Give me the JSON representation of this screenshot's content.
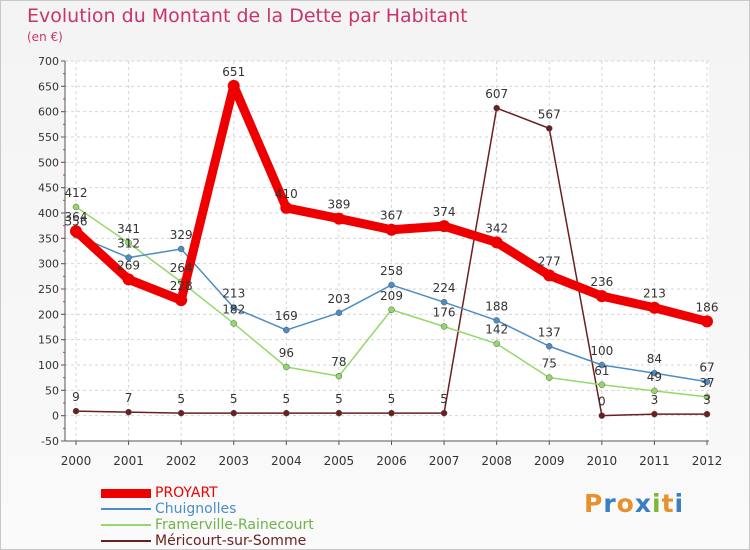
{
  "title": "Evolution du Montant de la Dette par Habitant",
  "unit": "(en €)",
  "brand": {
    "text": "Proxiti",
    "colors": [
      "#e8912c",
      "#3a7fc1",
      "#e8912c",
      "#3a7fc1",
      "#7bb83a",
      "#e8912c",
      "#3a7fc1"
    ]
  },
  "chart_data": {
    "type": "line",
    "categories": [
      "2000",
      "2001",
      "2002",
      "2003",
      "2004",
      "2005",
      "2006",
      "2007",
      "2008",
      "2009",
      "2010",
      "2011",
      "2012"
    ],
    "ylim": [
      -50,
      700
    ],
    "yticks": [
      -50,
      0,
      50,
      100,
      150,
      200,
      250,
      300,
      350,
      400,
      450,
      500,
      550,
      600,
      650,
      700
    ],
    "grid": true,
    "legend_placement": "bottom-left",
    "series": [
      {
        "name": "PROYART",
        "color": "#ee0000",
        "values": [
          364,
          269,
          228,
          651,
          410,
          389,
          367,
          374,
          342,
          277,
          236,
          213,
          186
        ]
      },
      {
        "name": "Chuignolles",
        "color": "#4b8dc6",
        "values": [
          356,
          312,
          329,
          213,
          169,
          203,
          258,
          224,
          188,
          137,
          100,
          84,
          67
        ]
      },
      {
        "name": "Framerville-Rainecourt",
        "color": "#93d96a",
        "values": [
          412,
          341,
          264,
          182,
          96,
          78,
          209,
          176,
          142,
          75,
          61,
          49,
          37
        ]
      },
      {
        "name": "Méricourt-sur-Somme",
        "color": "#6b1f1f",
        "values": [
          9,
          7,
          5,
          5,
          5,
          5,
          5,
          5,
          607,
          567,
          0,
          3,
          3
        ]
      }
    ]
  }
}
